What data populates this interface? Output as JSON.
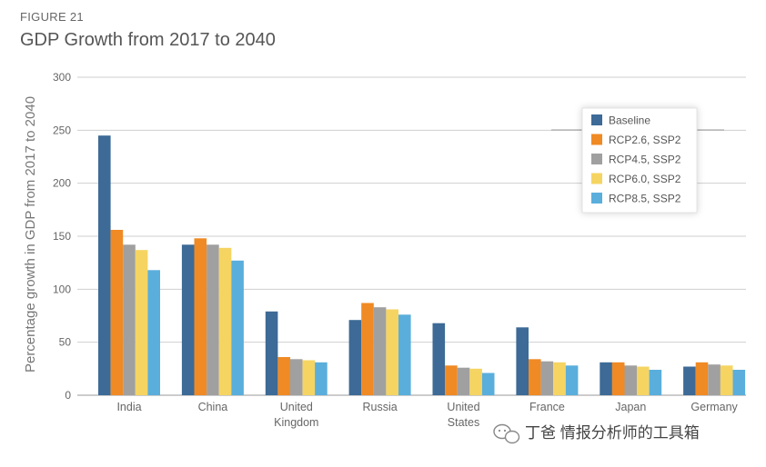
{
  "figure_label": "FIGURE 21",
  "title": "GDP Growth from 2017 to 2040",
  "watermark": "丁爸 情报分析师的工具箱",
  "chart_data": {
    "type": "bar",
    "title": "GDP Growth from 2017 to 2040",
    "xlabel": "",
    "ylabel": "Percentage growth in GDP from 2017 to 2040",
    "ylim": [
      0,
      300
    ],
    "yticks": [
      0,
      50,
      100,
      150,
      200,
      250,
      300
    ],
    "grid": true,
    "legend_position": "top-right",
    "categories": [
      [
        "India"
      ],
      [
        "China"
      ],
      [
        "United",
        "Kingdom"
      ],
      [
        "Russia"
      ],
      [
        "United",
        "States"
      ],
      [
        "France"
      ],
      [
        "Japan"
      ],
      [
        "Germany"
      ]
    ],
    "series": [
      {
        "name": "Baseline",
        "color": "#3d6a96",
        "values": [
          245,
          142,
          79,
          71,
          68,
          64,
          31,
          27
        ]
      },
      {
        "name": "RCP2.6, SSP2",
        "color": "#f08a24",
        "values": [
          156,
          148,
          36,
          87,
          28,
          34,
          31,
          31
        ]
      },
      {
        "name": "RCP4.5, SSP2",
        "color": "#a0a0a0",
        "values": [
          142,
          142,
          34,
          83,
          26,
          32,
          28,
          29
        ]
      },
      {
        "name": "RCP6.0, SSP2",
        "color": "#f5d462",
        "values": [
          137,
          139,
          33,
          81,
          25,
          31,
          27,
          28
        ]
      },
      {
        "name": "RCP8.5, SSP2",
        "color": "#5aaedc",
        "values": [
          118,
          127,
          31,
          76,
          21,
          28,
          24,
          24
        ]
      }
    ]
  }
}
